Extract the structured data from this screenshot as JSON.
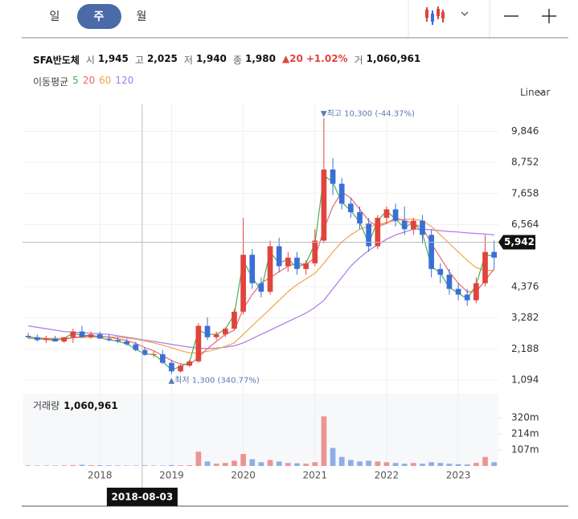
{
  "toolbar": {
    "tabs": [
      "일",
      "주",
      "월"
    ],
    "selected": 1
  },
  "header": {
    "name": "SFA반도체",
    "open_label": "시",
    "open": "1,945",
    "high_label": "고",
    "high": "2,025",
    "low_label": "저",
    "low": "1,940",
    "close_label": "종",
    "close": "1,980",
    "change": "▲20",
    "change_pct": "+1.02%",
    "volume_label": "거",
    "volume": "1,060,961"
  },
  "chart_data": {
    "type": "candlestick",
    "scale_label": "Linear",
    "ma_label": "이동평균",
    "x": [
      2017,
      2017.125,
      2017.25,
      2017.375,
      2017.5,
      2017.625,
      2017.75,
      2017.875,
      2018,
      2018.125,
      2018.25,
      2018.375,
      2018.5,
      2018.625,
      2018.75,
      2018.875,
      2019,
      2019.125,
      2019.25,
      2019.375,
      2019.5,
      2019.625,
      2019.75,
      2019.875,
      2020,
      2020.125,
      2020.25,
      2020.375,
      2020.5,
      2020.625,
      2020.75,
      2020.875,
      2021,
      2021.125,
      2021.25,
      2021.375,
      2021.5,
      2021.625,
      2021.75,
      2021.875,
      2022,
      2022.125,
      2022.25,
      2022.375,
      2022.5,
      2022.625,
      2022.75,
      2022.875,
      2023,
      2023.125,
      2023.25,
      2023.375,
      2023.5
    ],
    "open": [
      2650,
      2600,
      2500,
      2550,
      2450,
      2600,
      2800,
      2600,
      2700,
      2550,
      2500,
      2450,
      2350,
      2150,
      1980,
      2000,
      1700,
      1400,
      1600,
      1750,
      3000,
      2600,
      2700,
      2900,
      3500,
      5500,
      4500,
      4200,
      5800,
      5100,
      5400,
      5000,
      5200,
      6000,
      8500,
      8000,
      7300,
      7000,
      6600,
      5800,
      6800,
      7100,
      6700,
      6400,
      6700,
      6200,
      5000,
      4800,
      4300,
      4100,
      3900,
      4500,
      5600
    ],
    "high": [
      2750,
      2700,
      2650,
      2650,
      2600,
      2900,
      3000,
      2800,
      2800,
      2700,
      2600,
      2550,
      2450,
      2250,
      2100,
      2150,
      1800,
      1650,
      1800,
      3100,
      3300,
      2800,
      2950,
      3600,
      6800,
      5700,
      4700,
      6000,
      6100,
      5600,
      5600,
      5300,
      6400,
      10300,
      8900,
      8200,
      7500,
      7200,
      6800,
      6900,
      7200,
      7300,
      7200,
      6800,
      6900,
      6400,
      5200,
      5000,
      4500,
      4300,
      4700,
      6200,
      6000
    ],
    "low": [
      2550,
      2450,
      2400,
      2450,
      2400,
      2400,
      2600,
      2550,
      2550,
      2450,
      2400,
      2300,
      2100,
      1950,
      1900,
      1650,
      1300,
      1350,
      1550,
      1700,
      2500,
      2500,
      2600,
      2850,
      3400,
      4300,
      4000,
      4100,
      4900,
      4900,
      4800,
      4800,
      5100,
      5900,
      7600,
      7100,
      6800,
      6400,
      5600,
      5700,
      6600,
      6500,
      6200,
      6200,
      5900,
      4700,
      4500,
      4100,
      3900,
      3700,
      3800,
      4400,
      5000
    ],
    "close": [
      2600,
      2500,
      2550,
      2450,
      2600,
      2800,
      2600,
      2700,
      2550,
      2500,
      2450,
      2350,
      2150,
      1980,
      2000,
      1700,
      1400,
      1600,
      1750,
      3000,
      2600,
      2700,
      2900,
      3500,
      5500,
      4500,
      4200,
      5800,
      5100,
      5400,
      5000,
      5200,
      6000,
      8500,
      8000,
      7300,
      7000,
      6600,
      5800,
      6800,
      7100,
      6700,
      6400,
      6700,
      6200,
      5000,
      4800,
      4300,
      4100,
      3900,
      4500,
      5600,
      5400
    ],
    "volume": [
      4,
      3,
      3,
      3,
      4,
      6,
      8,
      5,
      5,
      4,
      3,
      3,
      3,
      4,
      3,
      3,
      6,
      4,
      5,
      95,
      30,
      15,
      20,
      35,
      80,
      45,
      25,
      40,
      30,
      20,
      18,
      15,
      25,
      330,
      120,
      60,
      40,
      30,
      35,
      30,
      25,
      20,
      15,
      20,
      15,
      25,
      20,
      15,
      12,
      10,
      20,
      60,
      25
    ],
    "up_color": "#e0443c",
    "down_color": "#3a6fd8",
    "series": [
      {
        "name": "5",
        "color": "#4caf50",
        "values": [
          2620,
          2540,
          2530,
          2480,
          2560,
          2750,
          2650,
          2680,
          2580,
          2510,
          2460,
          2370,
          2180,
          2010,
          1990,
          1750,
          1450,
          1570,
          1720,
          2850,
          2700,
          2700,
          2880,
          3400,
          5300,
          4700,
          4250,
          5600,
          5200,
          5350,
          5050,
          5200,
          5900,
          8300,
          8050,
          7350,
          7050,
          6650,
          5900,
          6700,
          7050,
          6750,
          6450,
          6650,
          6250,
          5100,
          4850,
          4350,
          4150,
          3950,
          4450,
          5500,
          5450
        ]
      },
      {
        "name": "20",
        "color": "#e8676c",
        "values": [
          2600,
          2580,
          2550,
          2520,
          2530,
          2580,
          2620,
          2650,
          2640,
          2600,
          2540,
          2480,
          2380,
          2240,
          2120,
          1960,
          1780,
          1660,
          1620,
          1900,
          2200,
          2450,
          2700,
          2850,
          3600,
          4100,
          4500,
          4700,
          4900,
          5100,
          5200,
          5150,
          5400,
          6400,
          7200,
          7700,
          7500,
          7100,
          6700,
          6500,
          6600,
          6800,
          6700,
          6600,
          6450,
          5900,
          5400,
          4900,
          4500,
          4200,
          4200,
          4600,
          5000
        ]
      },
      {
        "name": "60",
        "color": "#f2a34a",
        "values": [
          2550,
          2560,
          2560,
          2560,
          2570,
          2580,
          2590,
          2600,
          2610,
          2610,
          2600,
          2570,
          2530,
          2470,
          2400,
          2320,
          2230,
          2130,
          2050,
          2050,
          2100,
          2180,
          2280,
          2400,
          2700,
          3000,
          3300,
          3600,
          3900,
          4200,
          4450,
          4650,
          4850,
          5200,
          5600,
          5950,
          6200,
          6400,
          6500,
          6550,
          6650,
          6700,
          6750,
          6750,
          6700,
          6500,
          6200,
          5900,
          5600,
          5300,
          5050,
          4950,
          4950
        ]
      },
      {
        "name": "120",
        "color": "#a97ae6",
        "values": [
          3000,
          2950,
          2900,
          2850,
          2800,
          2780,
          2760,
          2740,
          2720,
          2700,
          2650,
          2600,
          2550,
          2500,
          2450,
          2400,
          2350,
          2300,
          2250,
          2220,
          2200,
          2220,
          2250,
          2300,
          2400,
          2550,
          2700,
          2850,
          3000,
          3150,
          3300,
          3450,
          3650,
          3900,
          4300,
          4700,
          5100,
          5400,
          5650,
          5850,
          6050,
          6200,
          6300,
          6400,
          6400,
          6380,
          6350,
          6320,
          6300,
          6270,
          6250,
          6230,
          6200
        ]
      }
    ],
    "xlim": [
      2016.92,
      2023.56
    ],
    "xticks": [
      2018,
      2019,
      2020,
      2021,
      2022,
      2023
    ],
    "ylim": [
      614,
      10790
    ],
    "yticks": [
      {
        "value": 1094,
        "label": "1,094"
      },
      {
        "value": 2188,
        "label": "2,188"
      },
      {
        "value": 3282,
        "label": "3,282"
      },
      {
        "value": 4376,
        "label": "4,376"
      },
      {
        "value": 6564,
        "label": "6,564"
      },
      {
        "value": 7658,
        "label": "7,658"
      },
      {
        "value": 8752,
        "label": "8,752"
      },
      {
        "value": 9846,
        "label": "9,846"
      }
    ],
    "grid": true,
    "volume_title": "거래량",
    "volume_value": "1,060,961",
    "vol_ylim": [
      0,
      481
    ],
    "vol_ticks": [
      {
        "value": 107,
        "label": "107m"
      },
      {
        "value": 214,
        "label": "214m"
      },
      {
        "value": 320,
        "label": "320m"
      }
    ],
    "max_annotation": "▼최고 10,300 (-44.37%)",
    "min_annotation": "▲최저 1,300 (340.77%)",
    "crosshair": {
      "x": 2018.59,
      "x_label": "2018-08-03",
      "y": {
        "value": 5942,
        "label": "5,942"
      }
    }
  }
}
